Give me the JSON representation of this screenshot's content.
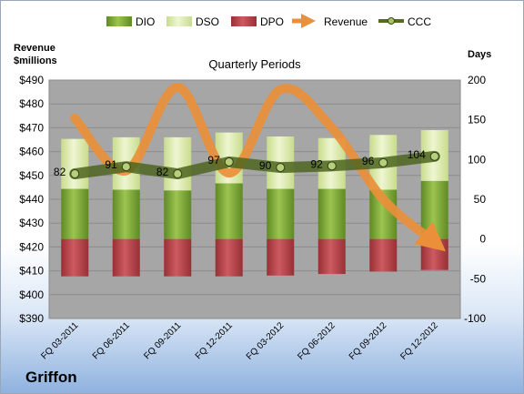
{
  "company": "Griffon",
  "chart_data": {
    "type": "bar",
    "title": "Quarterly Periods",
    "left_axis_title": [
      "Revenue",
      "$millions"
    ],
    "right_axis_title": "Days",
    "categories": [
      "FQ 03-2011",
      "FQ 06-2011",
      "FQ 09-2011",
      "FQ 12-2011",
      "FQ 03-2012",
      "FQ 06-2012",
      "FQ 09-2012",
      "FQ 12-2012"
    ],
    "left_axis": {
      "min": 390,
      "max": 490,
      "step": 10,
      "tick_labels": [
        "$390",
        "$400",
        "$410",
        "$420",
        "$430",
        "$440",
        "$450",
        "$460",
        "$470",
        "$480",
        "$490"
      ]
    },
    "right_axis": {
      "min": -100,
      "max": 200,
      "step": 50,
      "tick_labels": [
        "-100",
        "-50",
        "0",
        "50",
        "100",
        "150",
        "200"
      ]
    },
    "legend": {
      "position": "top",
      "entries": [
        "DIO",
        "DSO",
        "DPO",
        "Revenue",
        "CCC"
      ]
    },
    "series": [
      {
        "name": "DIO",
        "axis": "right",
        "kind": "stacked-bar",
        "values": [
          63,
          62,
          61,
          70,
          63,
          63,
          62,
          73
        ]
      },
      {
        "name": "DSO",
        "axis": "right",
        "kind": "stacked-bar",
        "values": [
          63,
          66,
          67,
          64,
          66,
          64,
          69,
          64
        ]
      },
      {
        "name": "DPO",
        "axis": "right",
        "kind": "negative-bar",
        "values": [
          -47,
          -47,
          -47,
          -47,
          -46,
          -44,
          -41,
          -39
        ]
      },
      {
        "name": "Revenue",
        "axis": "left",
        "kind": "line",
        "values": [
          474,
          452,
          487,
          451,
          486,
          470,
          440,
          422
        ]
      },
      {
        "name": "CCC",
        "axis": "right",
        "kind": "line",
        "values": [
          82,
          91,
          82,
          97,
          90,
          92,
          96,
          104
        ],
        "labels": [
          "82",
          "91",
          "82",
          "97",
          "90",
          "92",
          "96",
          "104"
        ]
      }
    ],
    "colors": {
      "DIO": "#79a23b",
      "DSO": "#d9e8a8",
      "DPO": "#b9444a",
      "Revenue": "#ea8f3a",
      "CCC": "#556b22",
      "plot_background": "#a6a6a6"
    },
    "grid": true
  }
}
